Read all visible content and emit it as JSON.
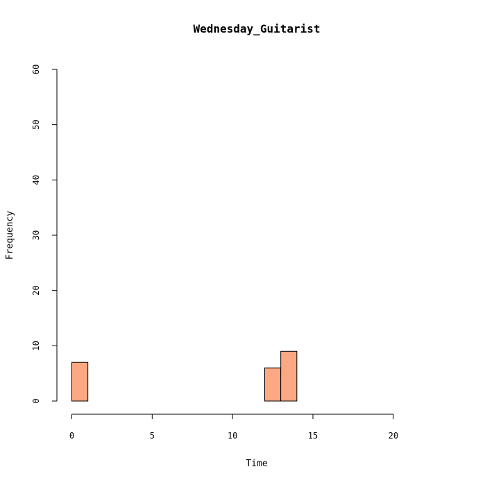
{
  "chart_data": {
    "type": "bar",
    "title": "Wednesday_Guitarist",
    "xlabel": "Time",
    "ylabel": "Frequency",
    "bin_width": 1,
    "bins": [
      {
        "x0": 0,
        "x1": 1,
        "count": 7
      },
      {
        "x0": 1,
        "x1": 2,
        "count": 0
      },
      {
        "x0": 2,
        "x1": 3,
        "count": 0
      },
      {
        "x0": 3,
        "x1": 4,
        "count": 0
      },
      {
        "x0": 4,
        "x1": 5,
        "count": 0
      },
      {
        "x0": 5,
        "x1": 6,
        "count": 0
      },
      {
        "x0": 6,
        "x1": 7,
        "count": 0
      },
      {
        "x0": 7,
        "x1": 8,
        "count": 0
      },
      {
        "x0": 8,
        "x1": 9,
        "count": 0
      },
      {
        "x0": 9,
        "x1": 10,
        "count": 0
      },
      {
        "x0": 10,
        "x1": 11,
        "count": 0
      },
      {
        "x0": 11,
        "x1": 12,
        "count": 0
      },
      {
        "x0": 12,
        "x1": 13,
        "count": 6
      },
      {
        "x0": 13,
        "x1": 14,
        "count": 9
      },
      {
        "x0": 14,
        "x1": 15,
        "count": 0
      },
      {
        "x0": 15,
        "x1": 16,
        "count": 0
      },
      {
        "x0": 16,
        "x1": 17,
        "count": 0
      },
      {
        "x0": 17,
        "x1": 18,
        "count": 0
      },
      {
        "x0": 18,
        "x1": 19,
        "count": 0
      },
      {
        "x0": 19,
        "x1": 20,
        "count": 0
      },
      {
        "x0": 20,
        "x1": 21,
        "count": 0
      },
      {
        "x0": 21,
        "x1": 22,
        "count": 0
      },
      {
        "x0": 22,
        "x1": 23,
        "count": 0
      },
      {
        "x0": 23,
        "x1": 24,
        "count": 0
      }
    ],
    "xlim": [
      0,
      24
    ],
    "ylim": [
      0,
      60
    ],
    "x_ticks": [
      0,
      5,
      10,
      15,
      20
    ],
    "y_ticks": [
      0,
      10,
      20,
      30,
      40,
      50,
      60
    ],
    "bar_color": "#FCA882",
    "bar_stroke": "#000000",
    "grid": false,
    "legend": "none"
  }
}
